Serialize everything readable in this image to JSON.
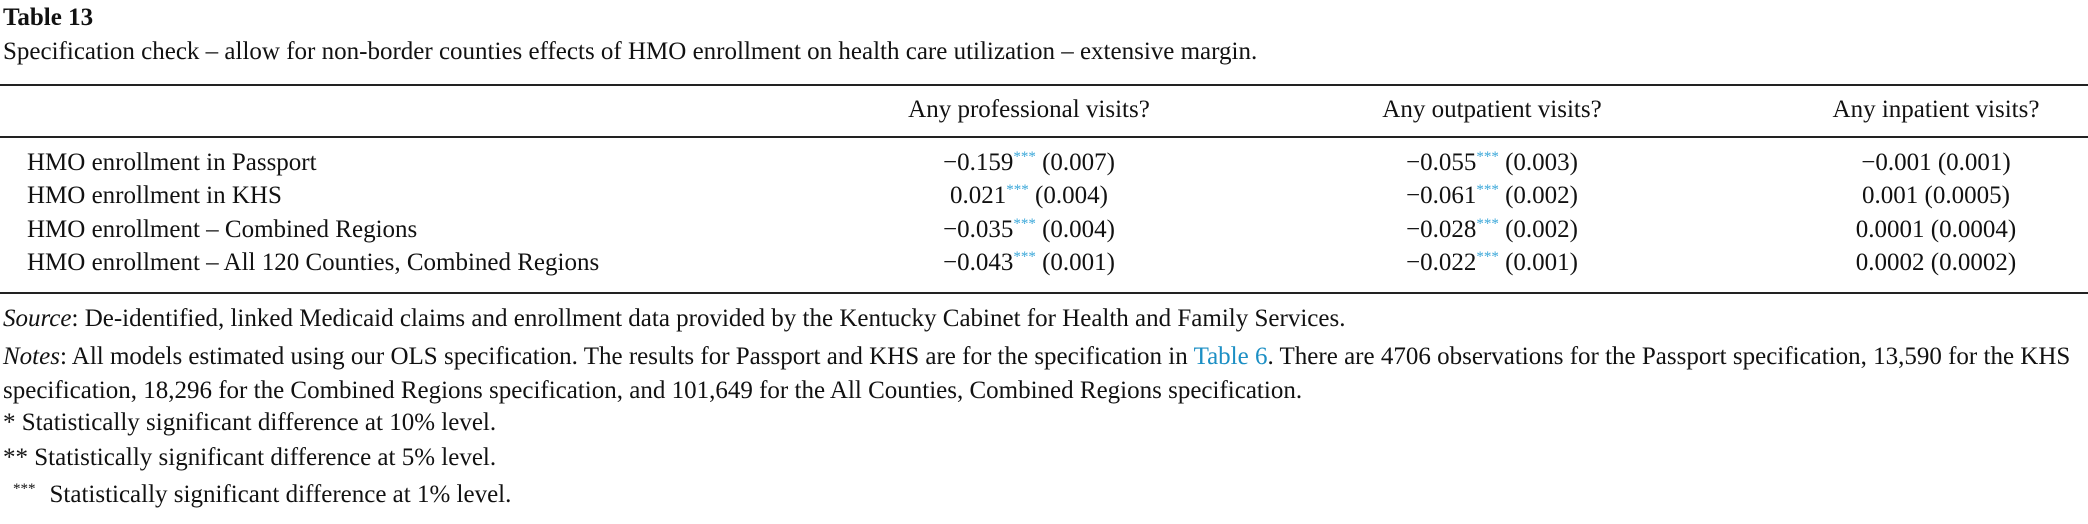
{
  "title": "Table 13",
  "caption": "Specification check – allow for non-border counties effects of HMO enrollment on health care utilization – extensive margin.",
  "table": {
    "header": [
      "Any professional visits?",
      "Any outpatient visits?",
      "Any inpatient visits?"
    ],
    "rows": [
      {
        "label": "HMO enrollment in Passport",
        "cells": [
          {
            "value": "−0.159",
            "stars": "***",
            "se": "(0.007)"
          },
          {
            "value": "−0.055",
            "stars": "***",
            "se": "(0.003)"
          },
          {
            "value": "−0.001",
            "se": "(0.001)"
          }
        ]
      },
      {
        "label": "HMO enrollment in KHS",
        "cells": [
          {
            "value": "0.021",
            "stars": "***",
            "se": "(0.004)"
          },
          {
            "value": "−0.061",
            "stars": "***",
            "se": "(0.002)"
          },
          {
            "value": "0.001",
            "se": "(0.0005)"
          }
        ]
      },
      {
        "label": "HMO enrollment – Combined Regions",
        "cells": [
          {
            "value": "−0.035",
            "stars": "***",
            "se": "(0.004)"
          },
          {
            "value": "−0.028",
            "stars": "***",
            "se": "(0.002)"
          },
          {
            "value": "0.0001",
            "se": "(0.0004)"
          }
        ]
      },
      {
        "label": "HMO enrollment – All 120 Counties, Combined Regions",
        "cells": [
          {
            "value": "−0.043",
            "stars": "***",
            "se": "(0.001)"
          },
          {
            "value": "−0.022",
            "stars": "***",
            "se": "(0.001)"
          },
          {
            "value": "0.0002",
            "se": "(0.0002)"
          }
        ]
      }
    ]
  },
  "source": {
    "label": "Source",
    "text": ": De-identified, linked Medicaid claims and enrollment data provided by the Kentucky Cabinet for Health and Family Services."
  },
  "notes": {
    "label": "Notes",
    "text_before": ": All models estimated using our OLS specification. The results for Passport and KHS are for the specification in",
    "link": "Table 6",
    "text_after": ". There are 4706 observations for the Passport specification, 13,590 for the KHS specification, 18,296 for the Combined Regions specification, and 101,649 for the All Counties, Combined Regions specification."
  },
  "footnotes": [
    {
      "marker": "*",
      "text": "Statistically significant difference at 10% level."
    },
    {
      "marker": "**",
      "text": "Statistically significant difference at 5% level."
    },
    {
      "marker": "***",
      "text": "Statistically significant difference at 1% level."
    }
  ]
}
